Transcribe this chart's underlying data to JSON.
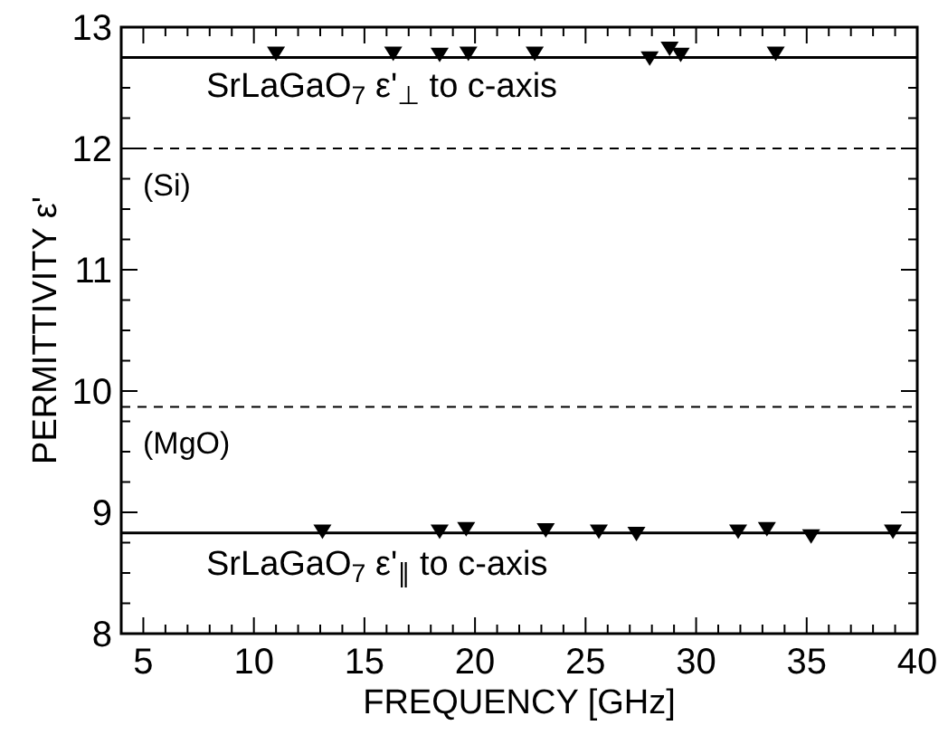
{
  "chart_data": {
    "type": "scatter",
    "xlabel": "FREQUENCY  [GHz]",
    "ylabel": "PERMITTIVITY  ε'",
    "marker": "triangle",
    "grid": false,
    "legend": "top left",
    "xlim": [
      4,
      40
    ],
    "ylim": [
      8,
      13
    ],
    "xticks": [
      5,
      {
        "value": 6,
        "label": null
      },
      {
        "value": 7,
        "label": null
      },
      {
        "value": 8,
        "label": null
      },
      {
        "value": 9,
        "label": null
      },
      10,
      {
        "value": 11,
        "label": null
      },
      {
        "value": 12,
        "label": null
      },
      {
        "value": 13,
        "label": null
      },
      {
        "value": 14,
        "label": null
      },
      15,
      {
        "value": 16,
        "label": null
      },
      {
        "value": 17,
        "label": null
      },
      {
        "value": 18,
        "label": null
      },
      {
        "value": 19,
        "label": null
      },
      20,
      {
        "value": 21,
        "label": null
      },
      {
        "value": 22,
        "label": null
      },
      {
        "value": 23,
        "label": null
      },
      {
        "value": 24,
        "label": null
      },
      25,
      {
        "value": 26,
        "label": null
      },
      {
        "value": 27,
        "label": null
      },
      {
        "value": 28,
        "label": null
      },
      {
        "value": 29,
        "label": null
      },
      30,
      {
        "value": 31,
        "label": null
      },
      {
        "value": 32,
        "label": null
      },
      {
        "value": 33,
        "label": null
      },
      {
        "value": 34,
        "label": null
      },
      35,
      {
        "value": 36,
        "label": null
      },
      {
        "value": 37,
        "label": null
      },
      {
        "value": 38,
        "label": null
      },
      {
        "value": 39,
        "label": null
      },
      40
    ],
    "yticks": [
      8,
      {
        "value": 8.25,
        "label": null
      },
      {
        "value": 8.5,
        "label": null
      },
      {
        "value": 8.75,
        "label": null
      },
      9,
      {
        "value": 9.25,
        "label": null
      },
      {
        "value": 9.5,
        "label": null
      },
      {
        "value": 9.75,
        "label": null
      },
      10,
      {
        "value": 10.25,
        "label": null
      },
      {
        "value": 10.5,
        "label": null
      },
      {
        "value": 10.75,
        "label": null
      },
      11,
      {
        "value": 11.25,
        "label": null
      },
      {
        "value": 11.5,
        "label": null
      },
      {
        "value": 11.75,
        "label": null
      },
      12,
      {
        "value": 12.25,
        "label": null
      },
      {
        "value": 12.5,
        "label": null
      },
      {
        "value": 12.75,
        "label": null
      },
      13
    ],
    "series": [
      {
        "name": "SrLaGaO$_{7}$  ε'$_{⊥}$  to c-axis",
        "color": "#000000",
        "x": [
          11.0,
          16.3,
          18.4,
          19.7,
          22.7,
          27.9,
          28.8,
          29.3,
          33.6
        ],
        "values": [
          12.78,
          12.78,
          12.77,
          12.78,
          12.78,
          12.74,
          12.82,
          12.77,
          12.78
        ]
      },
      {
        "name": "SrLaGaO$_{7}$  ε'$_{∥}$  to c-axis",
        "color": "#000000",
        "x": [
          13.1,
          18.4,
          19.6,
          23.2,
          25.6,
          27.3,
          31.9,
          33.2,
          35.2,
          38.9
        ],
        "values": [
          8.84,
          8.84,
          8.86,
          8.85,
          8.84,
          8.82,
          8.84,
          8.86,
          8.8,
          8.84
        ]
      }
    ],
    "ref_lines": [
      {
        "axis": "y",
        "value": 12.75,
        "line_style": "solid",
        "color": "#000000"
      },
      {
        "axis": "y",
        "value": 12.0,
        "label": "(Si)",
        "line_style": "dashed",
        "color": "#000000"
      },
      {
        "axis": "y",
        "value": 9.87,
        "label": "(MgO)",
        "line_style": "dashed",
        "color": "#000000"
      },
      {
        "axis": "y",
        "value": 8.83,
        "line_style": "solid",
        "color": "#000000"
      }
    ]
  }
}
